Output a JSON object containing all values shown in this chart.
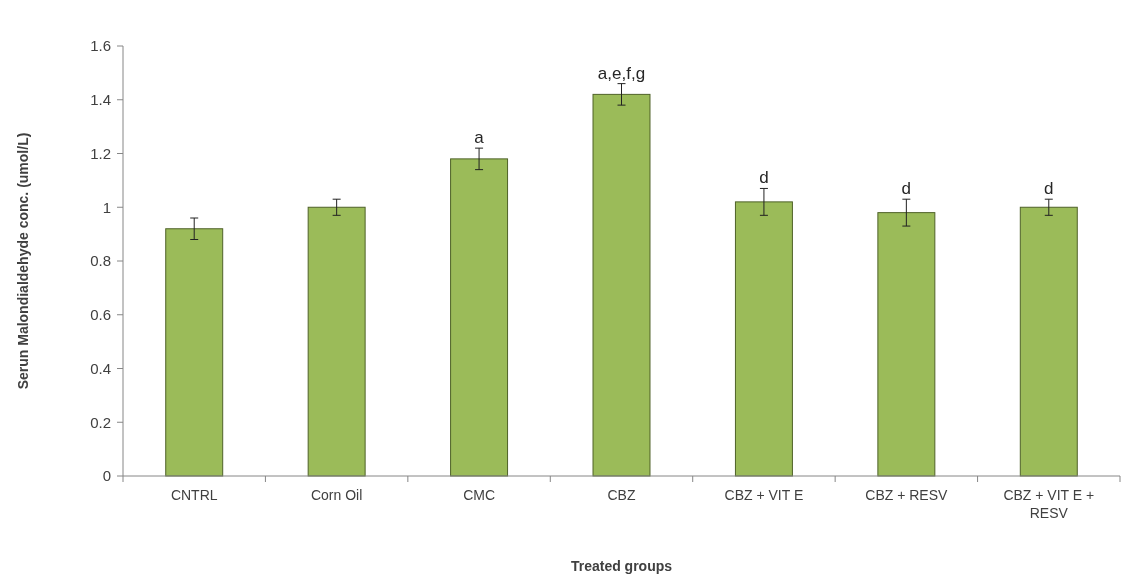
{
  "chart_data": {
    "type": "bar",
    "xlabel": "Treated groups",
    "ylabel": "Serun Malondialdehyde conc. (umol/L)",
    "categories": [
      "CNTRL",
      "Corn Oil",
      "CMC",
      "CBZ",
      "CBZ + VIT E",
      "CBZ + RESV",
      "CBZ + VIT E + RESV"
    ],
    "values": [
      0.92,
      1.0,
      1.18,
      1.42,
      1.02,
      0.98,
      1.0
    ],
    "errors": [
      0.04,
      0.03,
      0.04,
      0.04,
      0.05,
      0.05,
      0.03
    ],
    "color": "#9bbb59",
    "ylim": [
      0,
      1.6
    ],
    "yticks": [
      0,
      0.2,
      0.4,
      0.6,
      0.8,
      1,
      1.2,
      1.4,
      1.6
    ],
    "grid": false,
    "annotations": [
      {
        "text": "a",
        "x": "CMC",
        "y": 1.22
      },
      {
        "text": "a,e,f,g",
        "x": "CBZ",
        "y": 1.46
      },
      {
        "text": "d",
        "x": "CBZ + VIT E",
        "y": 1.07
      },
      {
        "text": "d",
        "x": "CBZ + RESV",
        "y": 1.03
      },
      {
        "text": "d",
        "x": "CBZ + VIT E + RESV",
        "y": 1.03
      }
    ]
  }
}
